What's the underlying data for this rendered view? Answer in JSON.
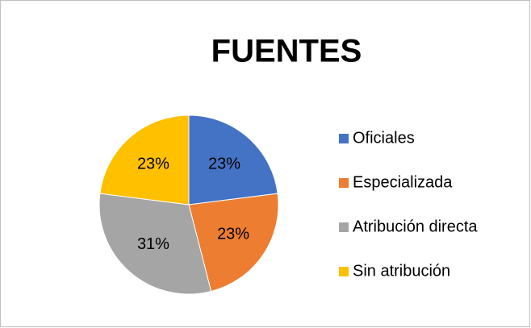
{
  "chart_data": {
    "type": "pie",
    "title": "FUENTES",
    "categories": [
      "Oficiales",
      "Especializada",
      "Atribución directa",
      "Sin atribución"
    ],
    "values": [
      23,
      23,
      31,
      23
    ],
    "value_labels": [
      "23%",
      "23%",
      "31%",
      "23%"
    ],
    "colors": [
      "#4472c4",
      "#ed7d31",
      "#a5a5a5",
      "#ffc000"
    ],
    "legend": "right"
  }
}
